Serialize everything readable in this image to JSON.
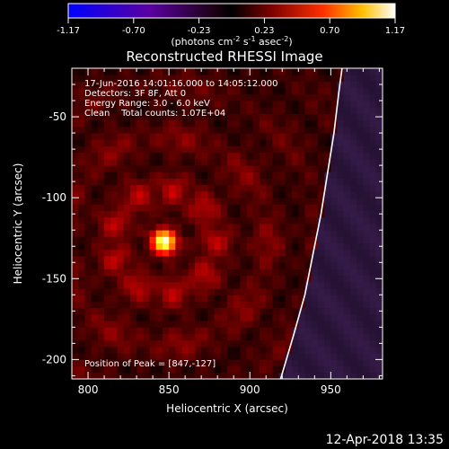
{
  "chart_data": {
    "type": "heatmap",
    "title": "Reconstructed RHESSI Image",
    "xlabel": "Heliocentric X (arcsec)",
    "ylabel": "Heliocentric Y (arcsec)",
    "xlim": [
      790,
      982
    ],
    "ylim": [
      -212,
      -20
    ],
    "xticks": [
      800,
      850,
      900,
      950
    ],
    "yticks": [
      -50,
      -100,
      -150,
      -200
    ],
    "colorbar": {
      "ticks": [
        "-1.17",
        "-0.70",
        "-0.23",
        "0.23",
        "0.70",
        "1.17"
      ],
      "range": [
        -1.17,
        1.17
      ],
      "unit_label": "(photons cm",
      "unit_exp1": "-2",
      "unit_mid": " s",
      "unit_exp2": "-1",
      "unit_mid2": " asec",
      "unit_exp3": "-2",
      "unit_end": ")"
    },
    "annotations": {
      "time_range": "17-Jun-2016 14:01:16.000 to 14:05:12.000",
      "detectors": "Detectors: 3F 8F, Att 0",
      "energy": "Energy Range: 3.0 - 6.0 keV",
      "method": "Clean    Total counts: 1.07E+04",
      "peak": "Position of Peak = [847,-127]"
    },
    "peak": {
      "x": 847,
      "y": -127,
      "value": 1.17
    },
    "limb_curve": [
      [
        919,
        -212
      ],
      [
        927,
        -185
      ],
      [
        934,
        -160
      ],
      [
        939,
        -135
      ],
      [
        944,
        -110
      ],
      [
        948,
        -85
      ],
      [
        952,
        -60
      ],
      [
        955,
        -35
      ],
      [
        957,
        -20
      ]
    ]
  },
  "footer": {
    "timestamp": "12-Apr-2018 13:35"
  }
}
